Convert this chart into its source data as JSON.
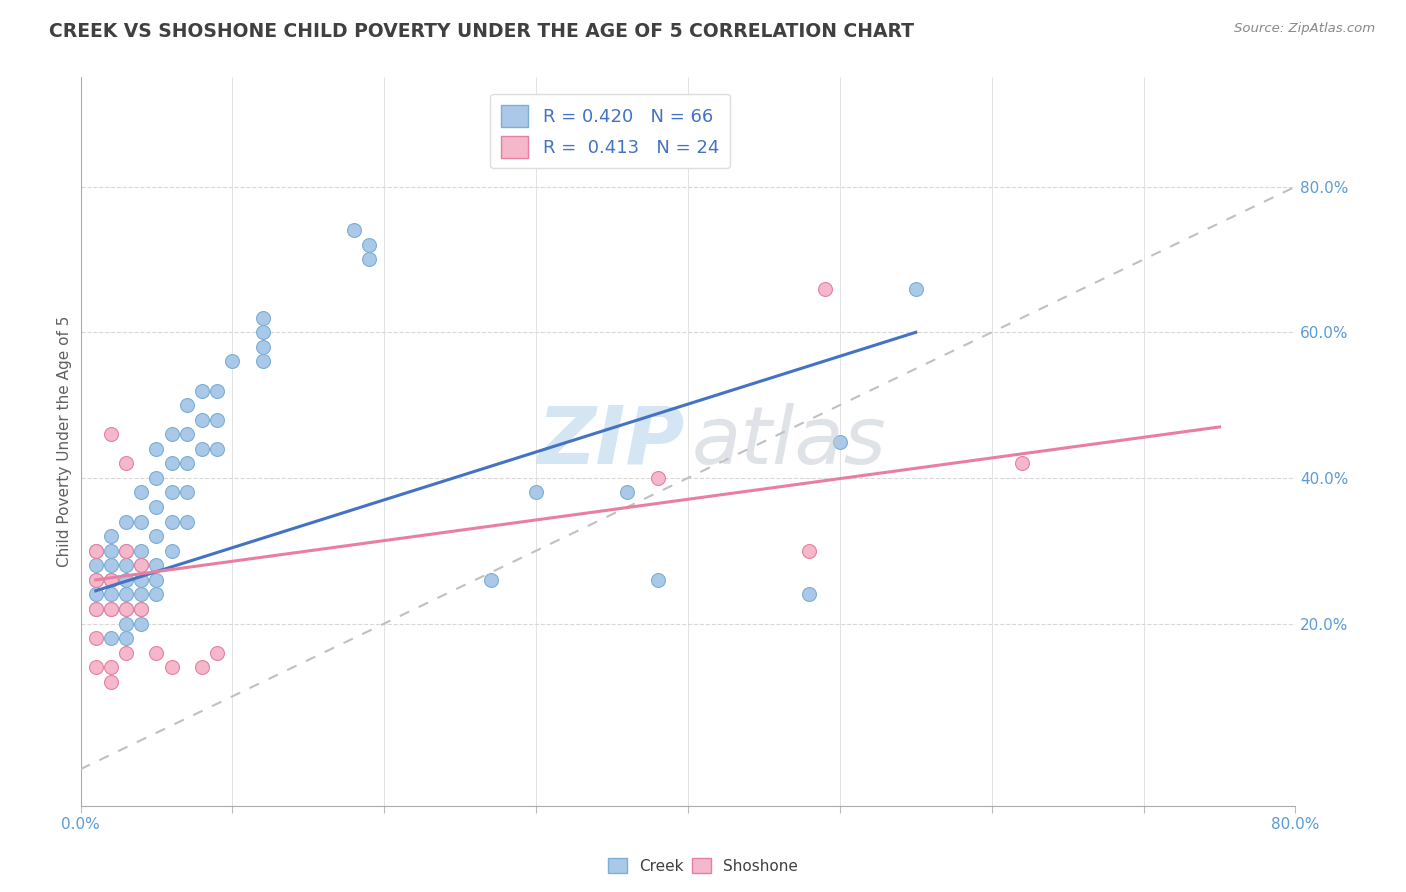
{
  "title": "CREEK VS SHOSHONE CHILD POVERTY UNDER THE AGE OF 5 CORRELATION CHART",
  "source": "Source: ZipAtlas.com",
  "ylabel": "Child Poverty Under the Age of 5",
  "xlim": [
    0.0,
    0.8
  ],
  "ylim": [
    -0.05,
    0.95
  ],
  "creek_color": "#aac8e8",
  "creek_edge_color": "#7bafd4",
  "shoshone_color": "#f5b8ca",
  "shoshone_edge_color": "#e87fa0",
  "creek_line_color": "#4472c4",
  "shoshone_line_color": "#e87fa0",
  "ref_line_color": "#c0c0c0",
  "legend_r_creek": "0.420",
  "legend_n_creek": "66",
  "legend_r_shoshone": "0.413",
  "legend_n_shoshone": "24",
  "background_color": "#ffffff",
  "grid_color": "#d8d8d8",
  "title_color": "#404040",
  "creek_scatter": [
    [
      0.01,
      0.3
    ],
    [
      0.01,
      0.28
    ],
    [
      0.01,
      0.26
    ],
    [
      0.01,
      0.24
    ],
    [
      0.01,
      0.22
    ],
    [
      0.02,
      0.32
    ],
    [
      0.02,
      0.3
    ],
    [
      0.02,
      0.28
    ],
    [
      0.02,
      0.26
    ],
    [
      0.02,
      0.24
    ],
    [
      0.02,
      0.22
    ],
    [
      0.02,
      0.18
    ],
    [
      0.03,
      0.34
    ],
    [
      0.03,
      0.3
    ],
    [
      0.03,
      0.28
    ],
    [
      0.03,
      0.26
    ],
    [
      0.03,
      0.24
    ],
    [
      0.03,
      0.22
    ],
    [
      0.03,
      0.2
    ],
    [
      0.03,
      0.18
    ],
    [
      0.04,
      0.38
    ],
    [
      0.04,
      0.34
    ],
    [
      0.04,
      0.3
    ],
    [
      0.04,
      0.28
    ],
    [
      0.04,
      0.26
    ],
    [
      0.04,
      0.24
    ],
    [
      0.04,
      0.22
    ],
    [
      0.04,
      0.2
    ],
    [
      0.05,
      0.44
    ],
    [
      0.05,
      0.4
    ],
    [
      0.05,
      0.36
    ],
    [
      0.05,
      0.32
    ],
    [
      0.05,
      0.28
    ],
    [
      0.05,
      0.26
    ],
    [
      0.05,
      0.24
    ],
    [
      0.06,
      0.46
    ],
    [
      0.06,
      0.42
    ],
    [
      0.06,
      0.38
    ],
    [
      0.06,
      0.34
    ],
    [
      0.06,
      0.3
    ],
    [
      0.07,
      0.5
    ],
    [
      0.07,
      0.46
    ],
    [
      0.07,
      0.42
    ],
    [
      0.07,
      0.38
    ],
    [
      0.07,
      0.34
    ],
    [
      0.08,
      0.52
    ],
    [
      0.08,
      0.48
    ],
    [
      0.08,
      0.44
    ],
    [
      0.09,
      0.52
    ],
    [
      0.09,
      0.48
    ],
    [
      0.09,
      0.44
    ],
    [
      0.1,
      0.56
    ],
    [
      0.12,
      0.62
    ],
    [
      0.12,
      0.6
    ],
    [
      0.12,
      0.58
    ],
    [
      0.12,
      0.56
    ],
    [
      0.18,
      0.74
    ],
    [
      0.19,
      0.72
    ],
    [
      0.19,
      0.7
    ],
    [
      0.27,
      0.26
    ],
    [
      0.3,
      0.38
    ],
    [
      0.36,
      0.38
    ],
    [
      0.38,
      0.26
    ],
    [
      0.48,
      0.24
    ],
    [
      0.5,
      0.45
    ],
    [
      0.55,
      0.66
    ]
  ],
  "shoshone_scatter": [
    [
      0.01,
      0.3
    ],
    [
      0.01,
      0.26
    ],
    [
      0.01,
      0.22
    ],
    [
      0.01,
      0.18
    ],
    [
      0.01,
      0.14
    ],
    [
      0.02,
      0.46
    ],
    [
      0.02,
      0.26
    ],
    [
      0.02,
      0.22
    ],
    [
      0.02,
      0.14
    ],
    [
      0.02,
      0.12
    ],
    [
      0.03,
      0.42
    ],
    [
      0.03,
      0.3
    ],
    [
      0.03,
      0.22
    ],
    [
      0.03,
      0.16
    ],
    [
      0.04,
      0.28
    ],
    [
      0.04,
      0.22
    ],
    [
      0.05,
      0.16
    ],
    [
      0.06,
      0.14
    ],
    [
      0.08,
      0.14
    ],
    [
      0.09,
      0.16
    ],
    [
      0.38,
      0.4
    ],
    [
      0.48,
      0.3
    ],
    [
      0.49,
      0.66
    ],
    [
      0.62,
      0.42
    ]
  ],
  "creek_trend_x": [
    0.01,
    0.55
  ],
  "creek_trend_y": [
    0.245,
    0.6
  ],
  "shoshone_trend_x": [
    0.01,
    0.75
  ],
  "shoshone_trend_y": [
    0.26,
    0.47
  ],
  "ref_line_x": [
    0.0,
    0.8
  ],
  "ref_line_y": [
    0.0,
    0.8
  ]
}
